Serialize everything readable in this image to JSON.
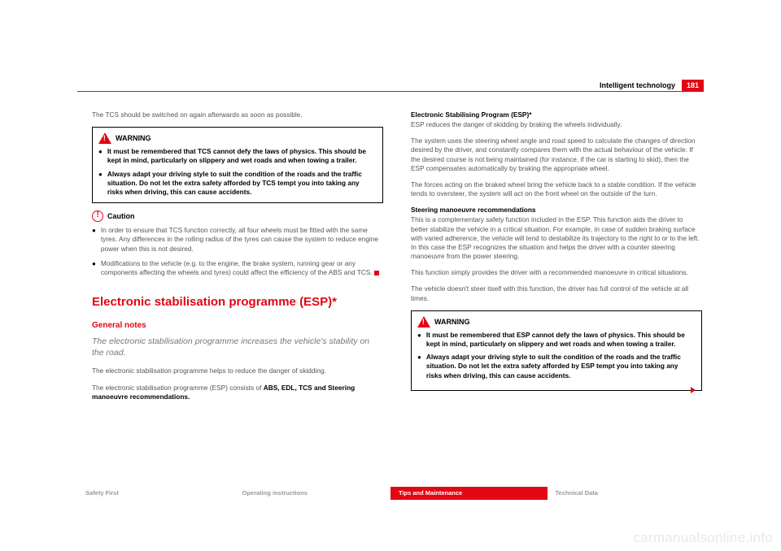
{
  "header": {
    "section": "Intelligent technology",
    "page": "181"
  },
  "col1": {
    "intro": "The TCS should be switched on again afterwards as soon as possible.",
    "warn_label": "WARNING",
    "warn_items": [
      "It must be remembered that TCS cannot defy the laws of physics. This should be kept in mind, particularly on slippery and wet roads and when towing a trailer.",
      "Always adapt your driving style to suit the condition of the roads and the traffic situation. Do not let the extra safety afforded by TCS tempt you into taking any risks when driving, this can cause accidents."
    ],
    "caution_label": "Caution",
    "caution_items": [
      "In order to ensure that TCS function correctly, all four wheels must be fitted with the same tyres. Any differences in the rolling radius of the tyres can cause the system to reduce engine power when this is not desired.",
      "Modifications to the vehicle (e.g. to the engine, the brake system, running gear or any components affecting the wheels and tyres) could affect the efficiency of the ABS and TCS."
    ],
    "h1": "Electronic stabilisation programme (ESP)*",
    "h2": "General notes",
    "lead": "The electronic stabilisation programme increases the vehicle's stability on the road.",
    "p1": "The electronic stabilisation programme helps to reduce the danger of skidding.",
    "p2a": "The electronic stabilisation programme (ESP) consists of ",
    "p2b": "ABS, EDL, TCS and Steering manoeuvre recommendations."
  },
  "col2": {
    "sub1": "Electronic Stabilising Program (ESP)*",
    "p1": "ESP reduces the danger of skidding by braking the wheels individually.",
    "p2": "The system uses the steering wheel angle and road speed to calculate the changes of direction desired by the driver, and constantly compares them with the actual behaviour of the vehicle. If the desired course is not being maintained (for instance, if the car is starting to skid), then the ESP compensates automatically by braking the appropriate wheel.",
    "p3": "The forces acting on the braked wheel bring the vehicle back to a stable condition. If the vehicle tends to oversteer, the system will act on the front wheel on the outside of the turn.",
    "sub2": "Steering manoeuvre recommendations",
    "p4": "This is a complementary safety function included in the ESP. This function aids the driver to better stabilize the vehicle in a critical situation. For example, in case of sudden braking surface with varied adherence, the vehicle will tend to destabilize its trajectory to the right to or to the left. In this case the ESP recognizes the situation and helps the driver with a counter steering manoeuvre from the power steering.",
    "p5": "This function simply provides the driver with a recommended manoeuvre in critical situations.",
    "p6": "The vehicle doesn't steer itself with this function, the driver has full control of the vehicle at all times.",
    "warn_label": "WARNING",
    "warn_items": [
      "It must be remembered that ESP cannot defy the laws of physics. This should be kept in mind, particularly on slippery and wet roads and when towing a trailer.",
      "Always adapt your driving style to suit the condition of the roads and the traffic situation. Do not let the extra safety afforded by ESP tempt you into taking any risks when driving, this can cause accidents."
    ]
  },
  "footer": {
    "tabs": [
      "Safety First",
      "Operating instructions",
      "Tips and Maintenance",
      "Technical Data"
    ],
    "active_index": 2
  },
  "watermark": "carmanualsonline.info"
}
